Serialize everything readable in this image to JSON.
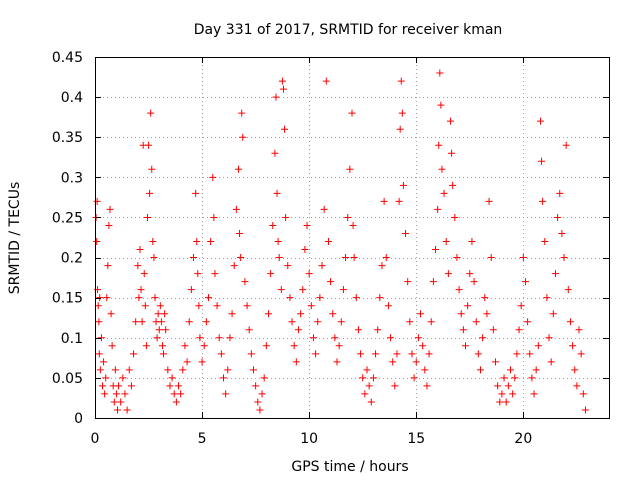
{
  "chart_data": {
    "type": "scatter",
    "title": "Day 331 of 2017, SRMTID for receiver kman",
    "xlabel": "GPS time / hours",
    "ylabel": "SRMTID / TECUs",
    "xlim": [
      0,
      24
    ],
    "ylim": [
      0,
      0.45
    ],
    "xticks": [
      0,
      5,
      10,
      15,
      20
    ],
    "xtick_labels": [
      "0",
      "5",
      "10",
      "15",
      "20"
    ],
    "yticks": [
      0,
      0.05,
      0.1,
      0.15,
      0.2,
      0.25,
      0.3,
      0.35,
      0.4,
      0.45
    ],
    "ytick_labels": [
      "0",
      "0.05",
      "0.1",
      "0.15",
      "0.2",
      "0.25",
      "0.3",
      "0.35",
      "0.4",
      "0.45"
    ],
    "grid": true,
    "marker": "+",
    "color": "#ff0000",
    "series": [
      {
        "name": "SRMTID",
        "points": [
          [
            0.05,
            0.25
          ],
          [
            0.08,
            0.22
          ],
          [
            0.1,
            0.27
          ],
          [
            0.12,
            0.16
          ],
          [
            0.15,
            0.14
          ],
          [
            0.18,
            0.12
          ],
          [
            0.2,
            0.08
          ],
          [
            0.22,
            0.15
          ],
          [
            0.25,
            0.06
          ],
          [
            0.3,
            0.1
          ],
          [
            0.35,
            0.04
          ],
          [
            0.4,
            0.07
          ],
          [
            0.45,
            0.03
          ],
          [
            0.5,
            0.05
          ],
          [
            0.55,
            0.15
          ],
          [
            0.6,
            0.19
          ],
          [
            0.65,
            0.24
          ],
          [
            0.7,
            0.26
          ],
          [
            0.75,
            0.13
          ],
          [
            0.8,
            0.09
          ],
          [
            0.85,
            0.04
          ],
          [
            0.9,
            0.02
          ],
          [
            0.95,
            0.06
          ],
          [
            1.0,
            0.03
          ],
          [
            1.05,
            0.01
          ],
          [
            1.1,
            0.04
          ],
          [
            1.2,
            0.02
          ],
          [
            1.3,
            0.05
          ],
          [
            1.4,
            0.03
          ],
          [
            1.5,
            0.01
          ],
          [
            1.6,
            0.06
          ],
          [
            1.7,
            0.04
          ],
          [
            1.8,
            0.08
          ],
          [
            1.9,
            0.12
          ],
          [
            2.0,
            0.19
          ],
          [
            2.05,
            0.15
          ],
          [
            2.1,
            0.21
          ],
          [
            2.15,
            0.16
          ],
          [
            2.2,
            0.12
          ],
          [
            2.25,
            0.34
          ],
          [
            2.3,
            0.18
          ],
          [
            2.35,
            0.14
          ],
          [
            2.4,
            0.09
          ],
          [
            2.45,
            0.25
          ],
          [
            2.5,
            0.34
          ],
          [
            2.55,
            0.28
          ],
          [
            2.6,
            0.38
          ],
          [
            2.65,
            0.31
          ],
          [
            2.7,
            0.22
          ],
          [
            2.75,
            0.2
          ],
          [
            2.8,
            0.15
          ],
          [
            2.85,
            0.12
          ],
          [
            2.9,
            0.1
          ],
          [
            2.95,
            0.13
          ],
          [
            3.0,
            0.11
          ],
          [
            3.05,
            0.14
          ],
          [
            3.1,
            0.12
          ],
          [
            3.15,
            0.09
          ],
          [
            3.2,
            0.08
          ],
          [
            3.25,
            0.13
          ],
          [
            3.3,
            0.11
          ],
          [
            3.4,
            0.06
          ],
          [
            3.5,
            0.04
          ],
          [
            3.6,
            0.05
          ],
          [
            3.7,
            0.03
          ],
          [
            3.8,
            0.02
          ],
          [
            3.9,
            0.04
          ],
          [
            4.0,
            0.03
          ],
          [
            4.1,
            0.06
          ],
          [
            4.2,
            0.09
          ],
          [
            4.3,
            0.07
          ],
          [
            4.4,
            0.12
          ],
          [
            4.5,
            0.16
          ],
          [
            4.6,
            0.2
          ],
          [
            4.7,
            0.28
          ],
          [
            4.75,
            0.22
          ],
          [
            4.8,
            0.18
          ],
          [
            4.85,
            0.14
          ],
          [
            4.9,
            0.1
          ],
          [
            5.0,
            0.07
          ],
          [
            5.1,
            0.09
          ],
          [
            5.2,
            0.12
          ],
          [
            5.3,
            0.15
          ],
          [
            5.4,
            0.22
          ],
          [
            5.5,
            0.3
          ],
          [
            5.55,
            0.25
          ],
          [
            5.6,
            0.18
          ],
          [
            5.7,
            0.14
          ],
          [
            5.8,
            0.1
          ],
          [
            5.9,
            0.08
          ],
          [
            6.0,
            0.05
          ],
          [
            6.1,
            0.03
          ],
          [
            6.2,
            0.06
          ],
          [
            6.3,
            0.1
          ],
          [
            6.4,
            0.13
          ],
          [
            6.5,
            0.19
          ],
          [
            6.6,
            0.26
          ],
          [
            6.7,
            0.31
          ],
          [
            6.75,
            0.23
          ],
          [
            6.8,
            0.2
          ],
          [
            6.85,
            0.38
          ],
          [
            6.9,
            0.35
          ],
          [
            7.0,
            0.17
          ],
          [
            7.1,
            0.14
          ],
          [
            7.2,
            0.11
          ],
          [
            7.3,
            0.08
          ],
          [
            7.4,
            0.06
          ],
          [
            7.5,
            0.04
          ],
          [
            7.6,
            0.02
          ],
          [
            7.7,
            0.01
          ],
          [
            7.8,
            0.03
          ],
          [
            7.9,
            0.05
          ],
          [
            8.0,
            0.09
          ],
          [
            8.1,
            0.13
          ],
          [
            8.2,
            0.18
          ],
          [
            8.3,
            0.24
          ],
          [
            8.4,
            0.33
          ],
          [
            8.45,
            0.4
          ],
          [
            8.5,
            0.28
          ],
          [
            8.55,
            0.22
          ],
          [
            8.6,
            0.2
          ],
          [
            8.7,
            0.16
          ],
          [
            8.75,
            0.42
          ],
          [
            8.8,
            0.41
          ],
          [
            8.85,
            0.36
          ],
          [
            8.9,
            0.25
          ],
          [
            9.0,
            0.19
          ],
          [
            9.1,
            0.15
          ],
          [
            9.2,
            0.12
          ],
          [
            9.3,
            0.09
          ],
          [
            9.4,
            0.07
          ],
          [
            9.5,
            0.11
          ],
          [
            9.6,
            0.13
          ],
          [
            9.7,
            0.16
          ],
          [
            9.8,
            0.21
          ],
          [
            9.9,
            0.24
          ],
          [
            10.0,
            0.18
          ],
          [
            10.1,
            0.14
          ],
          [
            10.2,
            0.1
          ],
          [
            10.3,
            0.08
          ],
          [
            10.4,
            0.12
          ],
          [
            10.5,
            0.15
          ],
          [
            10.6,
            0.19
          ],
          [
            10.7,
            0.26
          ],
          [
            10.8,
            0.42
          ],
          [
            10.9,
            0.22
          ],
          [
            11.0,
            0.17
          ],
          [
            11.1,
            0.13
          ],
          [
            11.2,
            0.1
          ],
          [
            11.3,
            0.07
          ],
          [
            11.4,
            0.09
          ],
          [
            11.5,
            0.12
          ],
          [
            11.6,
            0.16
          ],
          [
            11.7,
            0.2
          ],
          [
            11.8,
            0.25
          ],
          [
            11.9,
            0.31
          ],
          [
            12.0,
            0.38
          ],
          [
            12.05,
            0.24
          ],
          [
            12.1,
            0.2
          ],
          [
            12.2,
            0.15
          ],
          [
            12.3,
            0.11
          ],
          [
            12.4,
            0.08
          ],
          [
            12.5,
            0.05
          ],
          [
            12.6,
            0.03
          ],
          [
            12.7,
            0.06
          ],
          [
            12.8,
            0.04
          ],
          [
            12.9,
            0.02
          ],
          [
            13.0,
            0.05
          ],
          [
            13.1,
            0.08
          ],
          [
            13.2,
            0.11
          ],
          [
            13.3,
            0.15
          ],
          [
            13.4,
            0.19
          ],
          [
            13.5,
            0.27
          ],
          [
            13.6,
            0.2
          ],
          [
            13.7,
            0.14
          ],
          [
            13.8,
            0.1
          ],
          [
            13.9,
            0.07
          ],
          [
            14.0,
            0.04
          ],
          [
            14.1,
            0.08
          ],
          [
            14.2,
            0.27
          ],
          [
            14.25,
            0.36
          ],
          [
            14.3,
            0.42
          ],
          [
            14.35,
            0.38
          ],
          [
            14.4,
            0.29
          ],
          [
            14.5,
            0.23
          ],
          [
            14.6,
            0.17
          ],
          [
            14.7,
            0.12
          ],
          [
            14.8,
            0.08
          ],
          [
            14.9,
            0.05
          ],
          [
            15.0,
            0.07
          ],
          [
            15.1,
            0.1
          ],
          [
            15.2,
            0.13
          ],
          [
            15.3,
            0.09
          ],
          [
            15.4,
            0.06
          ],
          [
            15.5,
            0.04
          ],
          [
            15.6,
            0.08
          ],
          [
            15.7,
            0.12
          ],
          [
            15.8,
            0.17
          ],
          [
            15.9,
            0.21
          ],
          [
            16.0,
            0.26
          ],
          [
            16.05,
            0.34
          ],
          [
            16.1,
            0.43
          ],
          [
            16.15,
            0.39
          ],
          [
            16.2,
            0.31
          ],
          [
            16.3,
            0.28
          ],
          [
            16.4,
            0.22
          ],
          [
            16.5,
            0.18
          ],
          [
            16.6,
            0.37
          ],
          [
            16.65,
            0.33
          ],
          [
            16.7,
            0.29
          ],
          [
            16.8,
            0.25
          ],
          [
            16.9,
            0.2
          ],
          [
            17.0,
            0.16
          ],
          [
            17.1,
            0.13
          ],
          [
            17.2,
            0.11
          ],
          [
            17.3,
            0.09
          ],
          [
            17.4,
            0.14
          ],
          [
            17.5,
            0.18
          ],
          [
            17.6,
            0.22
          ],
          [
            17.7,
            0.17
          ],
          [
            17.8,
            0.12
          ],
          [
            17.9,
            0.08
          ],
          [
            18.0,
            0.06
          ],
          [
            18.1,
            0.1
          ],
          [
            18.2,
            0.15
          ],
          [
            18.3,
            0.13
          ],
          [
            18.4,
            0.27
          ],
          [
            18.5,
            0.2
          ],
          [
            18.6,
            0.11
          ],
          [
            18.7,
            0.07
          ],
          [
            18.8,
            0.04
          ],
          [
            18.9,
            0.02
          ],
          [
            19.0,
            0.03
          ],
          [
            19.1,
            0.05
          ],
          [
            19.2,
            0.02
          ],
          [
            19.3,
            0.04
          ],
          [
            19.4,
            0.06
          ],
          [
            19.5,
            0.03
          ],
          [
            19.6,
            0.05
          ],
          [
            19.7,
            0.08
          ],
          [
            19.8,
            0.11
          ],
          [
            19.9,
            0.14
          ],
          [
            20.0,
            0.2
          ],
          [
            20.1,
            0.17
          ],
          [
            20.2,
            0.12
          ],
          [
            20.3,
            0.08
          ],
          [
            20.4,
            0.05
          ],
          [
            20.5,
            0.03
          ],
          [
            20.6,
            0.06
          ],
          [
            20.7,
            0.09
          ],
          [
            20.8,
            0.37
          ],
          [
            20.85,
            0.32
          ],
          [
            20.9,
            0.27
          ],
          [
            21.0,
            0.22
          ],
          [
            21.1,
            0.15
          ],
          [
            21.2,
            0.1
          ],
          [
            21.3,
            0.07
          ],
          [
            21.4,
            0.13
          ],
          [
            21.5,
            0.18
          ],
          [
            21.6,
            0.25
          ],
          [
            21.7,
            0.28
          ],
          [
            21.8,
            0.23
          ],
          [
            21.9,
            0.2
          ],
          [
            22.0,
            0.34
          ],
          [
            22.1,
            0.16
          ],
          [
            22.2,
            0.12
          ],
          [
            22.3,
            0.09
          ],
          [
            22.4,
            0.06
          ],
          [
            22.5,
            0.04
          ],
          [
            22.6,
            0.11
          ],
          [
            22.7,
            0.08
          ],
          [
            22.8,
            0.03
          ],
          [
            22.9,
            0.01
          ]
        ]
      }
    ]
  }
}
